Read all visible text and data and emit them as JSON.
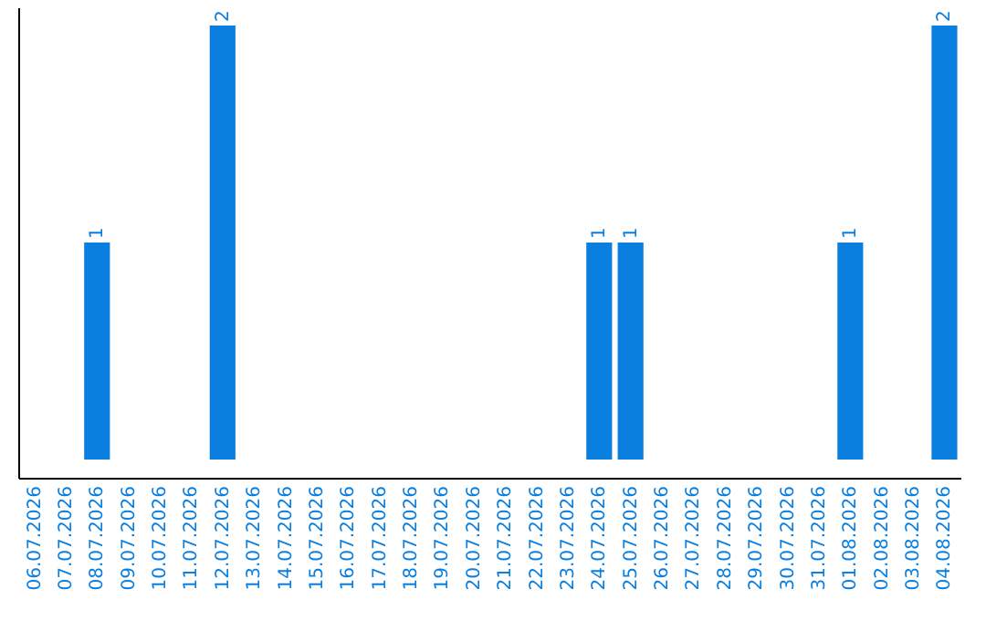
{
  "chart_data": {
    "type": "bar",
    "categories": [
      "06.07.2026",
      "07.07.2026",
      "08.07.2026",
      "09.07.2026",
      "10.07.2026",
      "11.07.2026",
      "12.07.2026",
      "13.07.2026",
      "14.07.2026",
      "15.07.2026",
      "16.07.2026",
      "17.07.2026",
      "18.07.2026",
      "19.07.2026",
      "20.07.2026",
      "21.07.2026",
      "22.07.2026",
      "23.07.2026",
      "24.07.2026",
      "25.07.2026",
      "26.07.2026",
      "27.07.2026",
      "28.07.2026",
      "29.07.2026",
      "30.07.2026",
      "31.07.2026",
      "01.08.2026",
      "02.08.2026",
      "03.08.2026",
      "04.08.2026"
    ],
    "values": [
      0,
      0,
      1,
      0,
      0,
      0,
      2,
      0,
      0,
      0,
      0,
      0,
      0,
      0,
      0,
      0,
      0,
      0,
      1,
      1,
      0,
      0,
      0,
      0,
      0,
      0,
      1,
      0,
      0,
      2
    ],
    "value_labels": [
      null,
      null,
      "1",
      null,
      null,
      null,
      "2",
      null,
      null,
      null,
      null,
      null,
      null,
      null,
      null,
      null,
      null,
      null,
      "1",
      "1",
      null,
      null,
      null,
      null,
      null,
      null,
      "1",
      null,
      null,
      "2"
    ],
    "color": "#0a7fe0",
    "tick_labels": "x",
    "grid": false
  }
}
